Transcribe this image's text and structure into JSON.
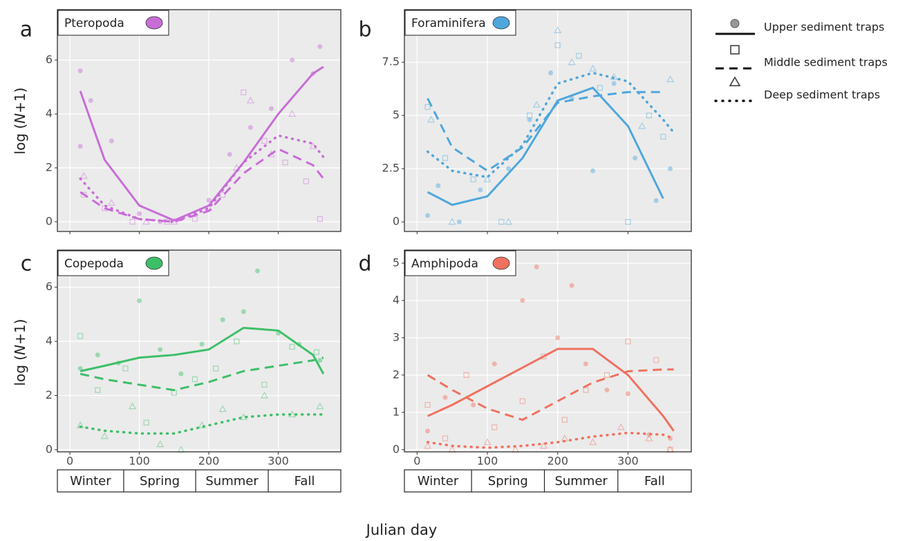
{
  "legend": {
    "items": [
      "Upper sediment traps",
      "Middle sediment traps",
      "Deep sediment traps"
    ]
  },
  "y_label": {
    "prefix": "log (",
    "variable": "N",
    "suffix": "+1)"
  },
  "x_label": "Julian day",
  "seasons": [
    "Winter",
    "Spring",
    "Summer",
    "Fall"
  ],
  "chart_data": [
    {
      "type": "line",
      "panel": "a",
      "title": "Pteropoda",
      "color": "#c86dd7",
      "xlim": [
        -18,
        390
      ],
      "xticks": [
        0,
        100,
        200,
        300
      ],
      "ylim": [
        -0.36,
        7.87
      ],
      "yticks": [
        0,
        2,
        4,
        6
      ],
      "x": [
        15,
        50,
        100,
        150,
        200,
        250,
        300,
        350,
        365
      ],
      "series": [
        {
          "values": [
            4.85,
            2.3,
            0.6,
            0.05,
            0.6,
            2.2,
            4.0,
            5.5,
            5.75
          ]
        },
        {
          "values": [
            1.1,
            0.5,
            0.1,
            0.0,
            0.4,
            1.8,
            2.7,
            2.1,
            1.6
          ]
        },
        {
          "values": [
            1.6,
            0.6,
            0.1,
            0.0,
            0.5,
            2.2,
            3.2,
            2.9,
            2.4
          ]
        }
      ],
      "points": [
        {
          "x": [
            15,
            15,
            30,
            60,
            100,
            130,
            160,
            200,
            230,
            260,
            290,
            320,
            350,
            360
          ],
          "y": [
            5.6,
            2.8,
            4.5,
            3.0,
            0.3,
            0.0,
            0.1,
            0.8,
            2.5,
            3.5,
            4.2,
            6.0,
            5.5,
            6.5
          ]
        },
        {
          "x": [
            20,
            50,
            90,
            140,
            180,
            220,
            250,
            280,
            310,
            340,
            360
          ],
          "y": [
            1.0,
            0.5,
            0.0,
            0.0,
            0.1,
            1.0,
            4.8,
            3.0,
            2.2,
            1.5,
            0.1
          ]
        },
        {
          "x": [
            20,
            60,
            110,
            150,
            200,
            240,
            260,
            290,
            320,
            350
          ],
          "y": [
            1.7,
            0.7,
            0.0,
            0.0,
            0.5,
            2.0,
            4.5,
            2.5,
            4.0,
            2.8
          ]
        }
      ]
    },
    {
      "type": "line",
      "panel": "b",
      "title": "Foraminifera",
      "color": "#4ea7dc",
      "xlim": [
        -18,
        390
      ],
      "xticks": [
        0,
        100,
        200,
        300
      ],
      "ylim": [
        -0.45,
        9.97
      ],
      "yticks": [
        0,
        2.5,
        5,
        7.5
      ],
      "x": [
        15,
        50,
        100,
        150,
        200,
        250,
        300,
        350,
        365
      ],
      "series": [
        {
          "values": [
            1.4,
            0.8,
            1.2,
            3.0,
            5.7,
            6.3,
            4.5,
            1.1,
            null
          ]
        },
        {
          "values": [
            5.8,
            3.5,
            2.4,
            3.5,
            5.6,
            5.9,
            6.1,
            6.1,
            null
          ]
        },
        {
          "values": [
            3.3,
            2.4,
            2.1,
            3.6,
            6.5,
            7.0,
            6.6,
            4.8,
            4.2
          ]
        }
      ],
      "points": [
        {
          "x": [
            15,
            30,
            60,
            90,
            130,
            160,
            190,
            220,
            250,
            280,
            310,
            340,
            360
          ],
          "y": [
            0.3,
            1.7,
            0.0,
            1.5,
            2.5,
            4.8,
            7.0,
            5.8,
            2.4,
            6.5,
            3.0,
            1.0,
            2.5
          ]
        },
        {
          "x": [
            15,
            40,
            80,
            120,
            160,
            200,
            230,
            260,
            300,
            330,
            350
          ],
          "y": [
            5.4,
            3.0,
            2.0,
            0.0,
            5.0,
            8.3,
            7.8,
            6.3,
            0.0,
            5.0,
            4.0
          ]
        },
        {
          "x": [
            20,
            50,
            100,
            130,
            170,
            200,
            220,
            250,
            280,
            320,
            360
          ],
          "y": [
            4.8,
            0.0,
            2.0,
            0.0,
            5.5,
            9.0,
            7.5,
            7.2,
            6.8,
            4.5,
            6.7
          ]
        }
      ]
    },
    {
      "type": "line",
      "panel": "c",
      "title": "Copepoda",
      "color": "#3dbf68",
      "xlim": [
        -18,
        390
      ],
      "xticks": [
        0,
        100,
        200,
        300
      ],
      "ylim": [
        -0.08,
        7.37
      ],
      "yticks": [
        0,
        2,
        4,
        6
      ],
      "x": [
        15,
        50,
        100,
        150,
        200,
        250,
        300,
        350,
        365
      ],
      "series": [
        {
          "values": [
            2.9,
            3.1,
            3.4,
            3.5,
            3.7,
            4.5,
            4.4,
            3.5,
            2.8
          ]
        },
        {
          "values": [
            2.8,
            2.6,
            2.4,
            2.2,
            2.5,
            2.9,
            3.1,
            3.3,
            3.4
          ]
        },
        {
          "values": [
            0.85,
            0.7,
            0.6,
            0.6,
            0.9,
            1.2,
            1.3,
            1.3,
            1.3
          ]
        }
      ],
      "points": [
        {
          "x": [
            15,
            40,
            70,
            100,
            130,
            160,
            190,
            220,
            250,
            270,
            300,
            330,
            360
          ],
          "y": [
            3.0,
            3.5,
            3.2,
            5.5,
            3.7,
            2.8,
            3.9,
            4.8,
            5.1,
            6.6,
            4.3,
            3.9,
            3.3
          ]
        },
        {
          "x": [
            15,
            40,
            80,
            110,
            150,
            180,
            210,
            240,
            280,
            320,
            355
          ],
          "y": [
            4.2,
            2.2,
            3.0,
            1.0,
            2.1,
            2.6,
            3.0,
            4.0,
            2.4,
            3.8,
            3.6
          ]
        },
        {
          "x": [
            15,
            50,
            90,
            130,
            160,
            190,
            220,
            250,
            280,
            320,
            360
          ],
          "y": [
            0.9,
            0.5,
            1.6,
            0.2,
            0.0,
            0.9,
            1.5,
            1.2,
            2.0,
            1.3,
            1.6
          ]
        }
      ]
    },
    {
      "type": "line",
      "panel": "d",
      "title": "Amphipoda",
      "color": "#f0715f",
      "xlim": [
        -18,
        390
      ],
      "xticks": [
        0,
        100,
        200,
        300
      ],
      "ylim": [
        -0.06,
        5.35
      ],
      "yticks": [
        0,
        1,
        2,
        3,
        4,
        5
      ],
      "x": [
        15,
        50,
        100,
        150,
        200,
        250,
        300,
        350,
        365
      ],
      "series": [
        {
          "values": [
            0.9,
            1.2,
            1.7,
            2.2,
            2.7,
            2.7,
            2.0,
            0.9,
            0.5
          ]
        },
        {
          "values": [
            2.0,
            1.6,
            1.1,
            0.8,
            1.3,
            1.8,
            2.1,
            2.15,
            2.15
          ]
        },
        {
          "values": [
            0.2,
            0.1,
            0.05,
            0.1,
            0.2,
            0.35,
            0.45,
            0.4,
            0.3
          ]
        }
      ],
      "points": [
        {
          "x": [
            15,
            40,
            80,
            110,
            150,
            170,
            200,
            220,
            240,
            270,
            300,
            330,
            360
          ],
          "y": [
            0.5,
            1.4,
            1.2,
            2.3,
            4.0,
            4.9,
            3.0,
            4.4,
            2.3,
            1.6,
            1.5,
            0.4,
            0.3
          ]
        },
        {
          "x": [
            15,
            40,
            70,
            110,
            150,
            180,
            210,
            240,
            270,
            300,
            340,
            360
          ],
          "y": [
            1.2,
            0.3,
            2.0,
            0.6,
            1.3,
            2.5,
            0.8,
            1.6,
            2.0,
            2.9,
            2.4,
            0.0
          ]
        },
        {
          "x": [
            15,
            50,
            100,
            140,
            180,
            210,
            250,
            290,
            330,
            360
          ],
          "y": [
            0.1,
            0.0,
            0.2,
            0.0,
            0.1,
            0.3,
            0.2,
            0.6,
            0.3,
            0.0
          ]
        }
      ]
    }
  ]
}
